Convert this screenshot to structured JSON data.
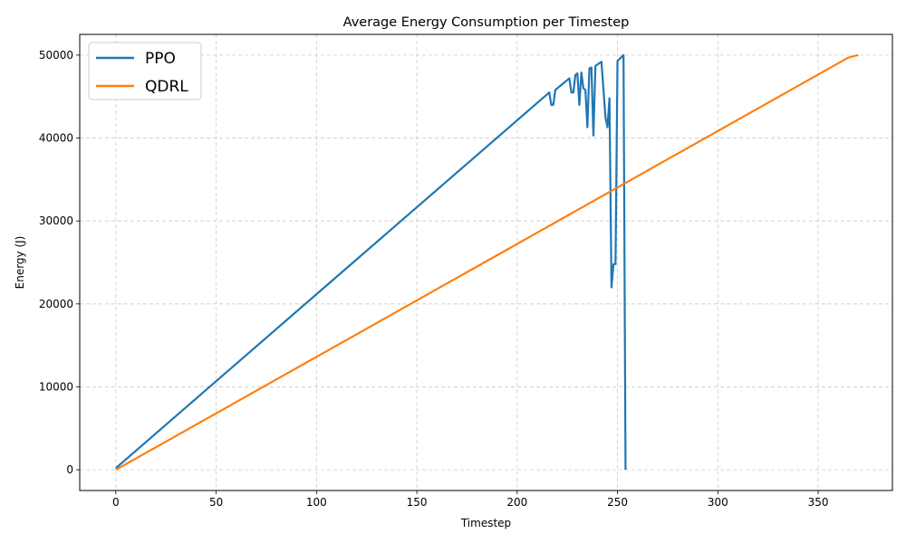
{
  "chart_data": {
    "type": "line",
    "title": "Average Energy Consumption per Timestep",
    "xlabel": "Timestep",
    "ylabel": "Energy (J)",
    "xlim": [
      -18,
      387
    ],
    "ylim": [
      -2500,
      52500
    ],
    "xticks": [
      0,
      50,
      100,
      150,
      200,
      250,
      300,
      350
    ],
    "yticks": [
      0,
      10000,
      20000,
      30000,
      40000,
      50000
    ],
    "grid": true,
    "legend_position": "top-left",
    "series": [
      {
        "name": "PPO",
        "color": "#1f77b4",
        "points": [
          [
            0,
            200
          ],
          [
            216,
            45500
          ],
          [
            217,
            44000
          ],
          [
            218,
            44000
          ],
          [
            219,
            45800
          ],
          [
            226,
            47200
          ],
          [
            227,
            45500
          ],
          [
            228,
            45500
          ],
          [
            229,
            47600
          ],
          [
            230,
            47800
          ],
          [
            231,
            44000
          ],
          [
            232,
            47900
          ],
          [
            233,
            46000
          ],
          [
            234,
            45800
          ],
          [
            235,
            41300
          ],
          [
            236,
            48400
          ],
          [
            237,
            48500
          ],
          [
            238,
            40300
          ],
          [
            239,
            48700
          ],
          [
            242,
            49200
          ],
          [
            244,
            42500
          ],
          [
            245,
            41300
          ],
          [
            246,
            44800
          ],
          [
            247,
            22000
          ],
          [
            248,
            24800
          ],
          [
            249,
            24800
          ],
          [
            250,
            49300
          ],
          [
            253,
            50000
          ],
          [
            254,
            0
          ]
        ]
      },
      {
        "name": "QDRL",
        "color": "#ff7f0e",
        "points": [
          [
            0,
            0
          ],
          [
            365,
            49700
          ],
          [
            368,
            49900
          ],
          [
            370,
            50000
          ]
        ]
      }
    ]
  }
}
